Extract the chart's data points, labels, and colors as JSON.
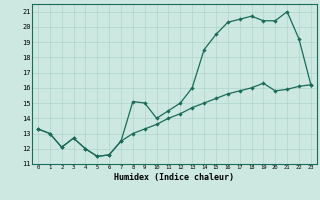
{
  "xlabel": "Humidex (Indice chaleur)",
  "bg_color": "#cce8e0",
  "line_color": "#1a6b5a",
  "grid_color": "#afd4cc",
  "xlim": [
    -0.5,
    23.5
  ],
  "ylim": [
    11.0,
    21.5
  ],
  "xticks": [
    0,
    1,
    2,
    3,
    4,
    5,
    6,
    7,
    8,
    9,
    10,
    11,
    12,
    13,
    14,
    15,
    16,
    17,
    18,
    19,
    20,
    21,
    22,
    23
  ],
  "yticks": [
    11,
    12,
    13,
    14,
    15,
    16,
    17,
    18,
    19,
    20,
    21
  ],
  "line1_x": [
    0,
    1,
    2,
    3,
    4,
    5,
    6,
    7,
    8,
    9,
    10,
    11,
    12,
    13,
    14,
    15,
    16,
    17,
    18,
    19,
    20,
    21,
    22,
    23
  ],
  "line1_y": [
    13.3,
    13.0,
    12.1,
    12.7,
    12.0,
    11.5,
    11.6,
    12.5,
    15.1,
    15.0,
    14.0,
    14.5,
    15.0,
    16.0,
    18.5,
    19.5,
    20.3,
    20.5,
    20.7,
    20.4,
    20.4,
    21.0,
    19.2,
    16.2
  ],
  "line2_x": [
    0,
    1,
    2,
    3,
    4,
    5,
    6,
    7,
    8,
    9,
    10,
    11,
    12,
    13,
    14,
    15,
    16,
    17,
    18,
    19,
    20,
    21,
    22,
    23
  ],
  "line2_y": [
    13.3,
    13.0,
    12.1,
    12.7,
    12.0,
    11.5,
    11.6,
    12.5,
    13.0,
    13.3,
    13.6,
    14.0,
    14.3,
    14.7,
    15.0,
    15.3,
    15.6,
    15.8,
    16.0,
    16.3,
    15.8,
    15.9,
    16.1,
    16.2
  ]
}
